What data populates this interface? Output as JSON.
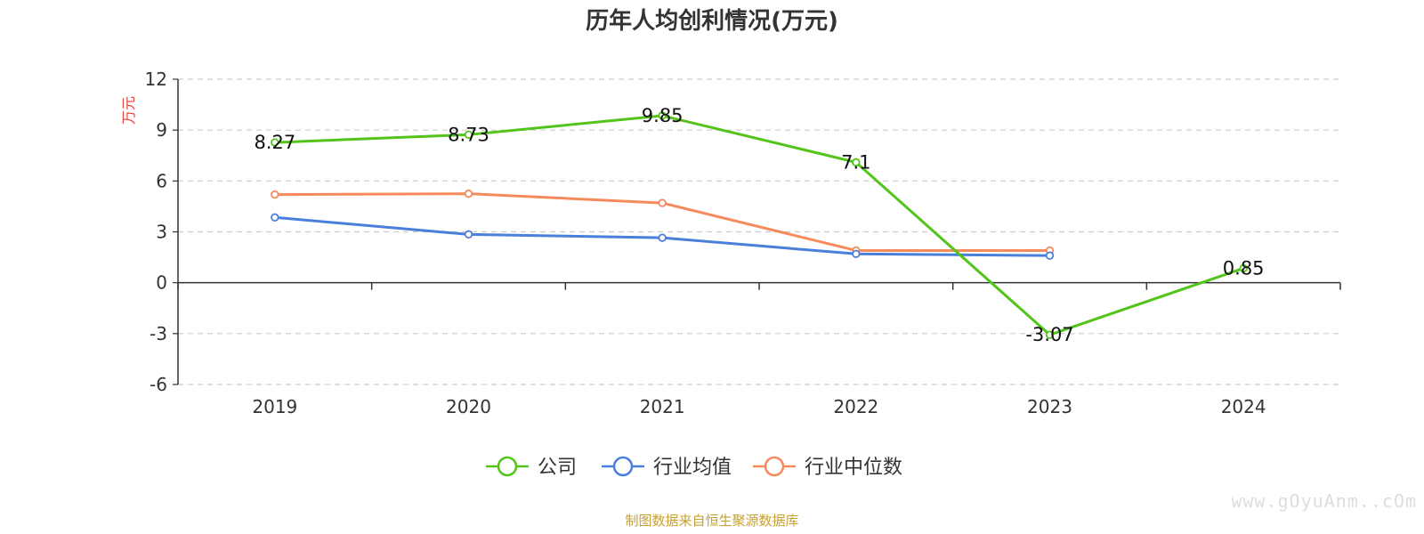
{
  "source_note": "制图数据来自恒生聚源数据库",
  "watermark": "www.gOyuAnm..cOm",
  "chart_data": {
    "type": "line",
    "title": "历年人均创利情况(万元)",
    "ylabel": "万元",
    "xlabel": "",
    "categories": [
      "2019",
      "2020",
      "2021",
      "2022",
      "2023",
      "2024"
    ],
    "ylim": [
      -6,
      12
    ],
    "yticks": [
      -6,
      -3,
      0,
      3,
      6,
      9,
      12
    ],
    "grid": true,
    "legend_position": "bottom",
    "series": [
      {
        "name": "公司",
        "color": "#52c41a",
        "values": [
          8.27,
          8.73,
          9.85,
          7.1,
          -3.07,
          0.85
        ],
        "data_labels": [
          "8.27",
          "8.73",
          "9.85",
          "7.1",
          "-3.07",
          "0.85"
        ]
      },
      {
        "name": "行业均值",
        "color": "#4a7fdb",
        "values": [
          3.85,
          2.85,
          2.65,
          1.7,
          1.6,
          null
        ],
        "data_labels": []
      },
      {
        "name": "行业中位数",
        "color": "#f58b5c",
        "values": [
          5.2,
          5.25,
          4.7,
          1.9,
          1.9,
          null
        ],
        "data_labels": []
      }
    ]
  }
}
